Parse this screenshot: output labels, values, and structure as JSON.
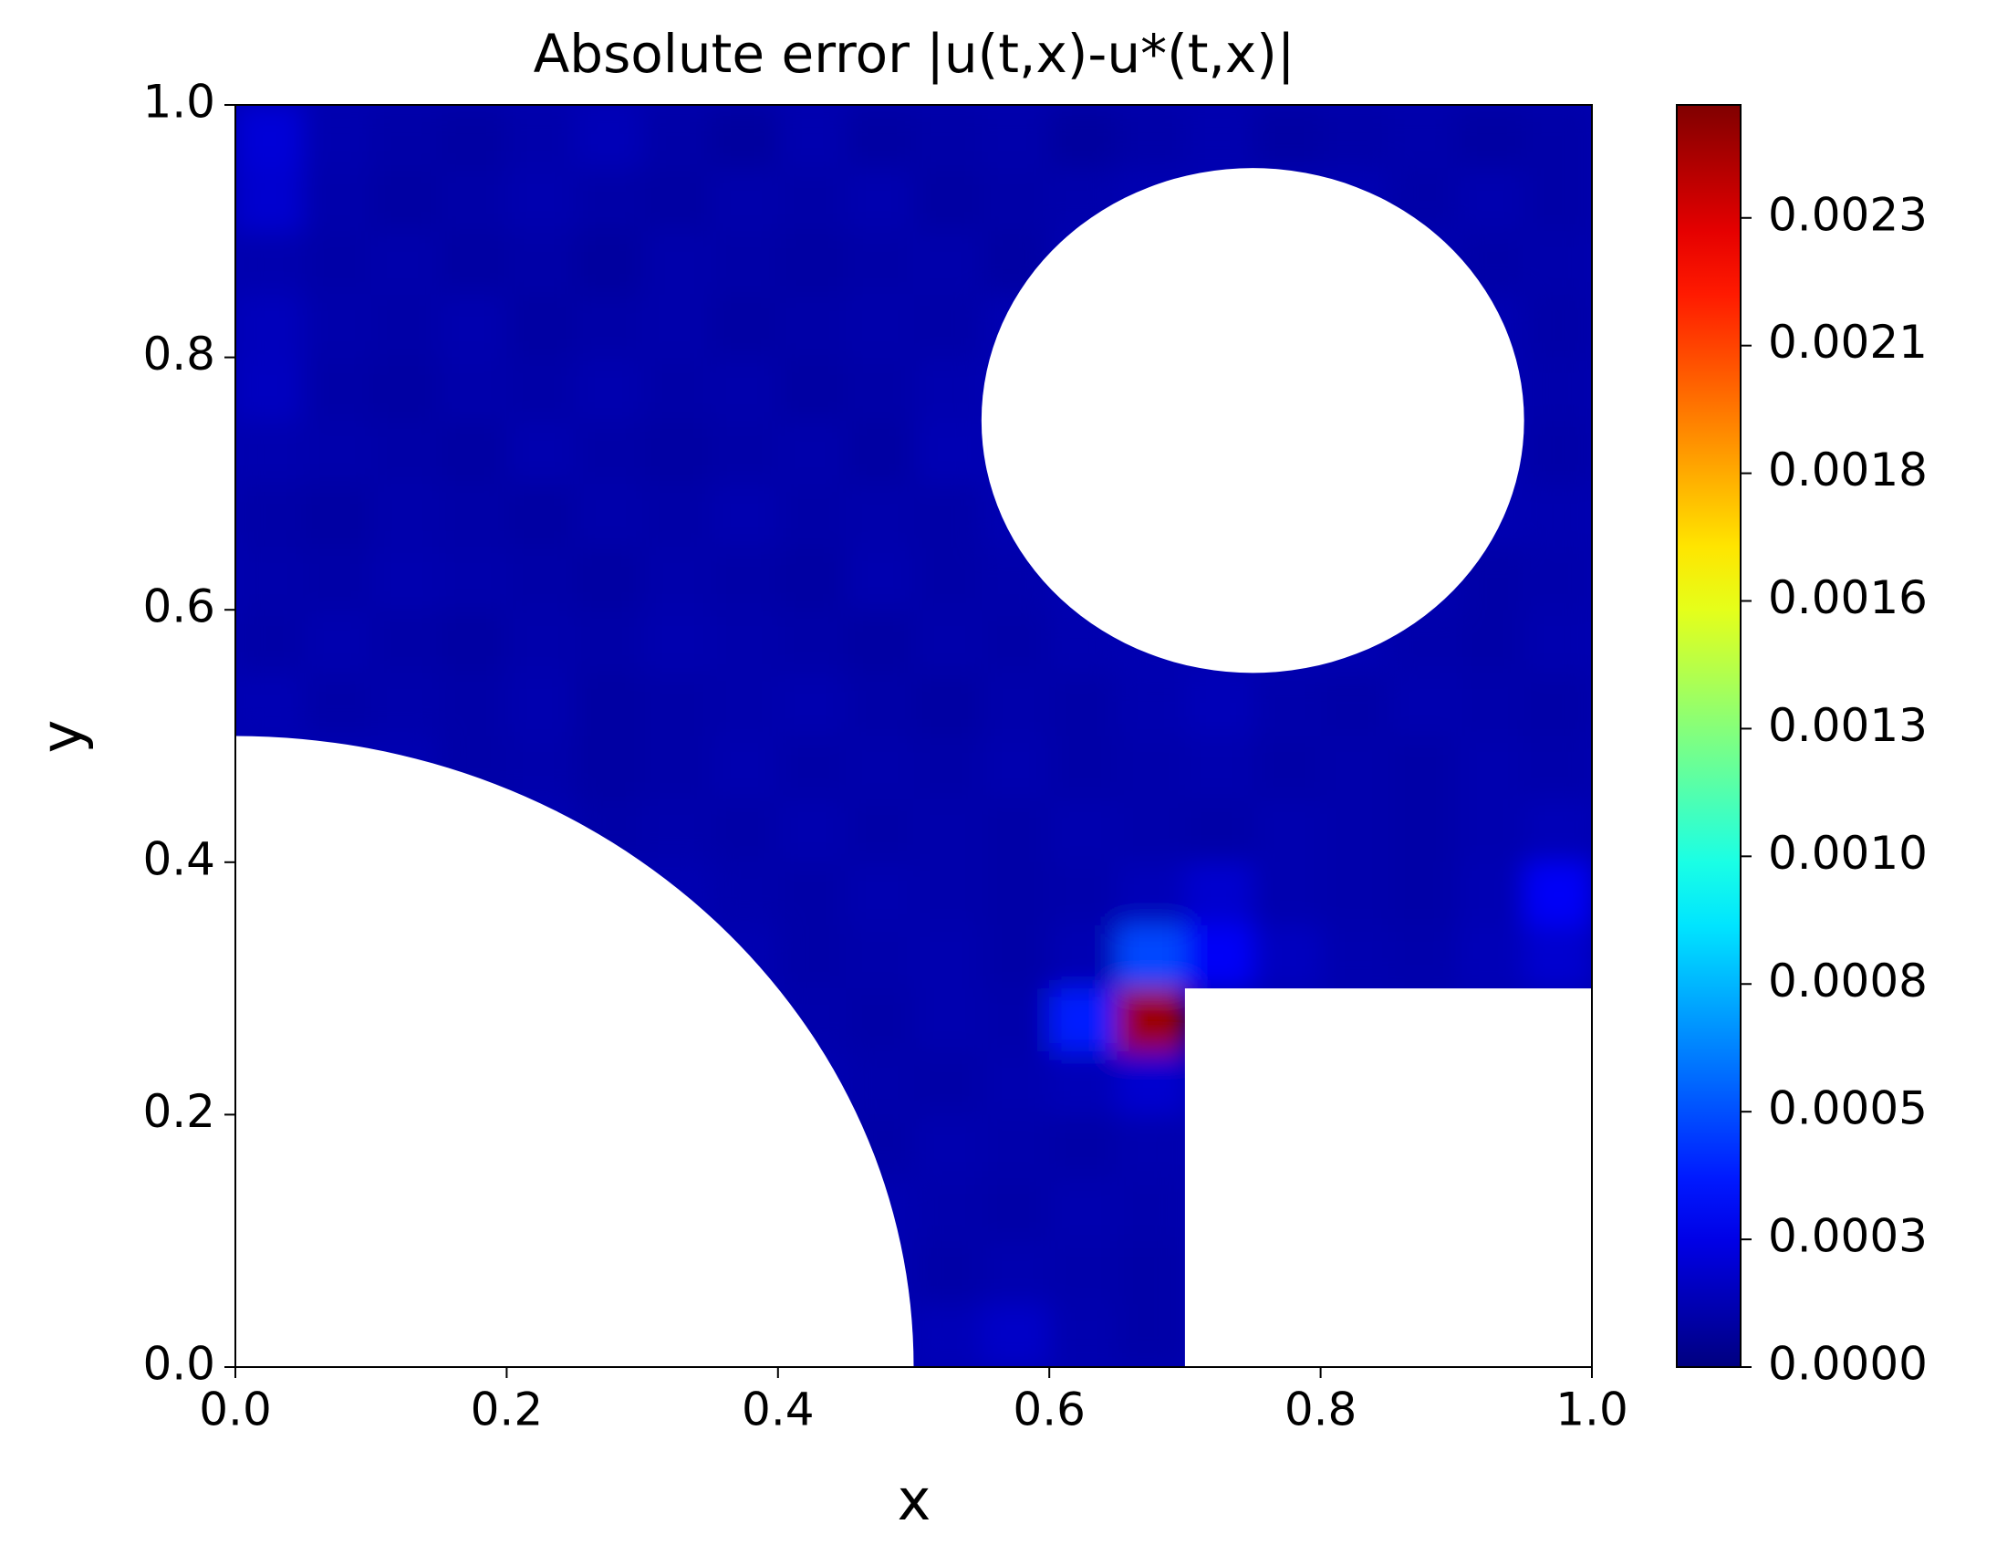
{
  "chart_data": {
    "type": "heatmap",
    "title": "Absolute error |u(t,x)-u*(t,x)|",
    "xlabel": "x",
    "ylabel": "y",
    "xlim": [
      0,
      1
    ],
    "ylim": [
      0,
      1
    ],
    "xticks": [
      {
        "value": 0,
        "label": "0.0"
      },
      0.2,
      0.4,
      0.6,
      0.8,
      {
        "value": 1,
        "label": "1.0"
      }
    ],
    "yticks": [
      {
        "value": 0,
        "label": "0.0"
      },
      0.2,
      0.4,
      0.6,
      0.8,
      {
        "value": 1,
        "label": "1.0"
      }
    ],
    "colormap": "jet",
    "clim": [
      0,
      0.00257
    ],
    "cticks": [
      {
        "value": 0,
        "label": "0.0000"
      },
      {
        "value": 0.00026,
        "label": "0.0003"
      },
      {
        "value": 0.00052,
        "label": "0.0005"
      },
      {
        "value": 0.00078,
        "label": "0.0008"
      },
      {
        "value": 0.00104,
        "label": "0.0010"
      },
      {
        "value": 0.0013,
        "label": "0.0013"
      },
      {
        "value": 0.00156,
        "label": "0.0016"
      },
      {
        "value": 0.00182,
        "label": "0.0018"
      },
      {
        "value": 0.00208,
        "label": "0.0021"
      },
      {
        "value": 0.00234,
        "label": "0.0023"
      }
    ],
    "z": [
      [
        0.00022,
        0.00012,
        0.0001,
        9e-05,
        0.00011,
        0.00014,
        0.0001,
        8e-05,
        0.00012,
        9e-05,
        0.0001,
        0.00011,
        8e-05,
        0.0001,
        0.00012,
        9e-05,
        0.0001,
        0.00011,
        9e-05,
        0.0001
      ],
      [
        0.0002,
        0.00011,
        9e-05,
        0.0001,
        0.00012,
        0.0001,
        9e-05,
        0.00011,
        0.0001,
        0.00012,
        9e-05,
        0.0001,
        0.00011,
        null,
        null,
        null,
        null,
        0.0001,
        0.00012,
        0.0001
      ],
      [
        0.00012,
        0.0001,
        0.00011,
        9e-05,
        0.0001,
        8e-05,
        0.00011,
        0.0001,
        9e-05,
        0.0001,
        0.00011,
        9e-05,
        null,
        null,
        null,
        null,
        null,
        null,
        0.0001,
        0.00011
      ],
      [
        0.00015,
        0.00011,
        0.0001,
        0.00012,
        9e-05,
        0.0001,
        0.00011,
        9e-05,
        0.0001,
        0.00011,
        0.0001,
        null,
        null,
        null,
        null,
        null,
        null,
        null,
        null,
        0.0001
      ],
      [
        0.00016,
        0.0001,
        9e-05,
        0.00011,
        0.0001,
        0.00012,
        0.0001,
        0.00011,
        9e-05,
        0.0001,
        0.00012,
        null,
        null,
        null,
        null,
        null,
        null,
        null,
        null,
        0.00011
      ],
      [
        0.00012,
        0.00011,
        0.0001,
        9e-05,
        0.00012,
        0.0001,
        9e-05,
        0.0001,
        0.00011,
        9e-05,
        0.00013,
        null,
        null,
        null,
        null,
        null,
        null,
        null,
        null,
        0.0001
      ],
      [
        0.0001,
        9e-05,
        0.00011,
        0.0001,
        9e-05,
        0.00011,
        0.0001,
        0.00012,
        0.0001,
        0.00011,
        0.0001,
        null,
        null,
        null,
        null,
        null,
        null,
        null,
        null,
        0.00012
      ],
      [
        0.00011,
        0.0001,
        0.00012,
        0.00011,
        0.0001,
        9e-05,
        0.00011,
        0.0001,
        9e-05,
        0.00012,
        0.0001,
        0.00011,
        null,
        null,
        null,
        null,
        null,
        null,
        0.0001,
        0.00011
      ],
      [
        0.0001,
        0.00012,
        0.0001,
        9e-05,
        0.00011,
        0.0001,
        0.00012,
        0.00011,
        0.0001,
        9e-05,
        0.00011,
        0.0001,
        0.00012,
        null,
        null,
        null,
        null,
        0.00011,
        0.0001,
        0.00012
      ],
      [
        0.00013,
        0.0001,
        0.00011,
        0.0001,
        0.00012,
        9e-05,
        0.0001,
        0.00011,
        0.00012,
        0.0001,
        9e-05,
        0.00011,
        0.0001,
        0.00012,
        0.00014,
        0.00011,
        0.0001,
        0.00012,
        0.00011,
        0.0001
      ],
      [
        null,
        null,
        null,
        0.0001,
        0.00011,
        9e-05,
        0.0001,
        0.00012,
        0.0001,
        0.00011,
        0.0001,
        0.00012,
        0.0001,
        0.00011,
        0.00012,
        0.0001,
        0.00011,
        0.0001,
        0.00012,
        0.00011
      ],
      [
        null,
        null,
        null,
        null,
        null,
        0.0001,
        0.00011,
        0.0001,
        0.00012,
        0.0001,
        0.00011,
        0.0001,
        0.00012,
        0.00011,
        0.0001,
        0.00012,
        0.00011,
        0.0001,
        0.00012,
        0.00014
      ],
      [
        null,
        null,
        null,
        null,
        null,
        null,
        null,
        0.00011,
        0.0001,
        0.00012,
        0.00011,
        0.0001,
        0.00011,
        0.00014,
        0.0002,
        0.00012,
        0.00011,
        0.0001,
        0.00013,
        0.0003
      ],
      [
        null,
        null,
        null,
        null,
        null,
        null,
        null,
        null,
        0.0001,
        0.00011,
        0.00012,
        0.0001,
        0.00013,
        0.0005,
        0.0003,
        0.00016,
        0.00012,
        0.00011,
        0.00014,
        0.0002
      ],
      [
        null,
        null,
        null,
        null,
        null,
        null,
        null,
        null,
        0.00011,
        0.0001,
        0.00012,
        0.00011,
        0.0004,
        0.0025,
        null,
        null,
        null,
        null,
        null,
        null
      ],
      [
        null,
        null,
        null,
        null,
        null,
        null,
        null,
        null,
        null,
        0.00011,
        0.0001,
        0.00012,
        0.00014,
        0.0002,
        null,
        null,
        null,
        null,
        null,
        null
      ],
      [
        null,
        null,
        null,
        null,
        null,
        null,
        null,
        null,
        null,
        0.0001,
        0.00012,
        0.00011,
        0.0001,
        0.00012,
        null,
        null,
        null,
        null,
        null,
        null
      ],
      [
        null,
        null,
        null,
        null,
        null,
        null,
        null,
        null,
        null,
        null,
        0.00011,
        0.0001,
        0.00012,
        0.00011,
        null,
        null,
        null,
        null,
        null,
        null
      ],
      [
        null,
        null,
        null,
        null,
        null,
        null,
        null,
        null,
        null,
        null,
        0.0001,
        0.00012,
        0.00011,
        0.0001,
        null,
        null,
        null,
        null,
        null,
        null
      ],
      [
        null,
        null,
        null,
        null,
        null,
        null,
        null,
        null,
        null,
        null,
        0.00014,
        0.00018,
        0.00012,
        0.0001,
        null,
        null,
        null,
        null,
        null,
        null
      ]
    ]
  }
}
